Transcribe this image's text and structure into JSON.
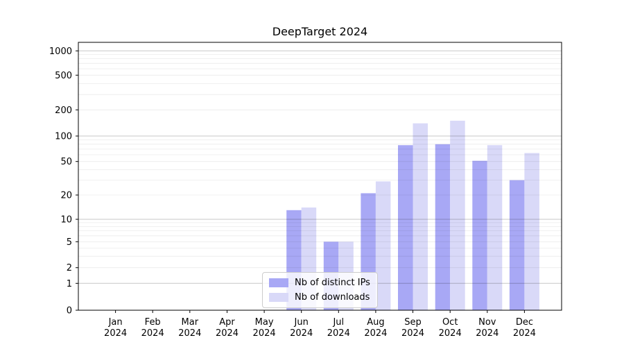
{
  "chart_data": {
    "type": "bar",
    "title": "DeepTarget 2024",
    "categories": [
      "Jan",
      "Feb",
      "Mar",
      "Apr",
      "May",
      "Jun",
      "Jul",
      "Aug",
      "Sep",
      "Oct",
      "Nov",
      "Dec"
    ],
    "category_year": "2024",
    "series": [
      {
        "name": "Nb of distinct IPs",
        "color": "#a8a8f5",
        "values": [
          0,
          0,
          0,
          0,
          0,
          13,
          5,
          21,
          78,
          80,
          51,
          30
        ]
      },
      {
        "name": "Nb of downloads",
        "color": "#d9d9f8",
        "values": [
          0,
          0,
          0,
          0,
          0,
          14,
          5,
          29,
          140,
          150,
          78,
          63
        ]
      }
    ],
    "yscale": "symlog",
    "yticks": [
      0,
      1,
      2,
      5,
      10,
      20,
      50,
      100,
      200,
      500,
      1000
    ],
    "ylim": [
      0,
      1300
    ],
    "xlabel": "",
    "ylabel": "",
    "grid": true,
    "legend_position": "lower-center"
  }
}
